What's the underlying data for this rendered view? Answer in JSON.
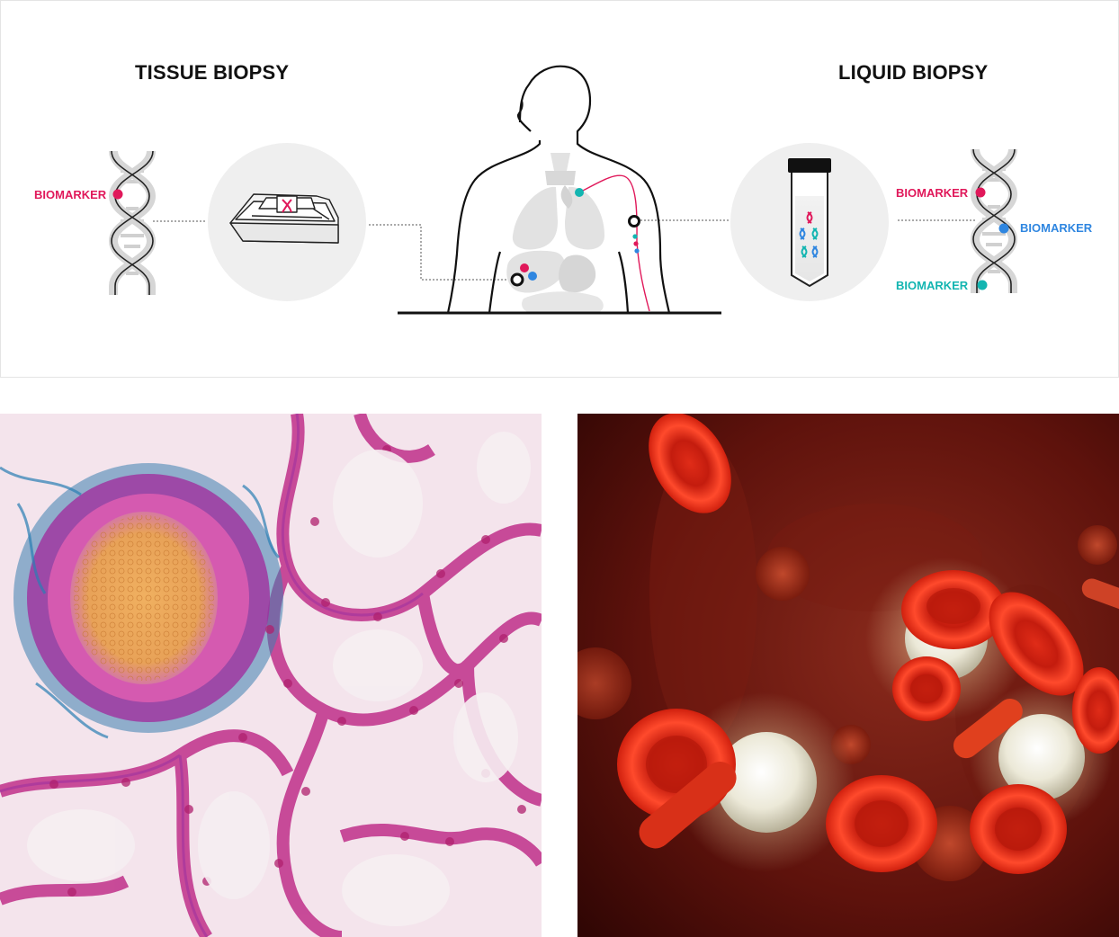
{
  "tissue": {
    "heading": "TISSUE BIOPSY",
    "biomarker_label": "BIOMARKER"
  },
  "liquid": {
    "heading": "LIQUID BIOPSY",
    "biomarker_labels": [
      "BIOMARKER",
      "BIOMARKER",
      "BIOMARKER"
    ]
  },
  "colors": {
    "red": "#e0185a",
    "blue": "#2f86e0",
    "teal": "#13b5b1",
    "grey": "#d9d9d9",
    "dark": "#111111"
  }
}
